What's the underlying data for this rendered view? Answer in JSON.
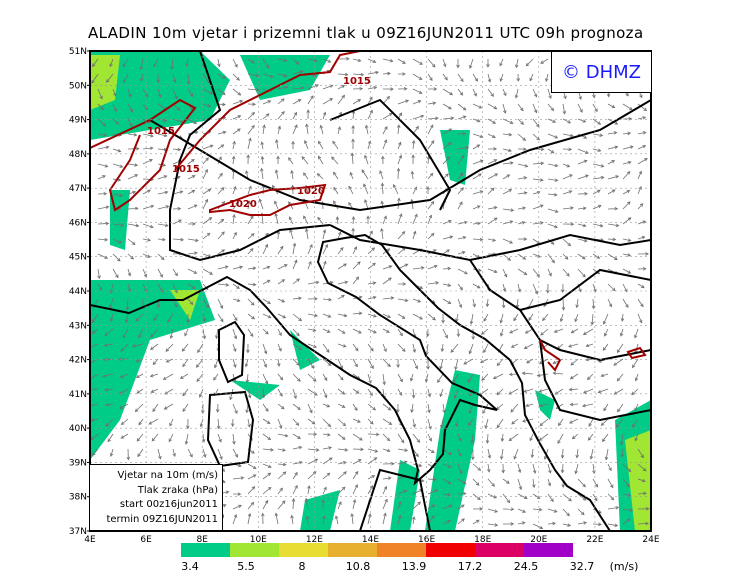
{
  "title": "ALADIN  10m  vjetar  i  prizemni  tlak  u  09Z16JUN2011  UTC  09h  prognoza",
  "logo": "© DHMZ",
  "info": [
    "Vjetar na 10m (m/s)",
    "Tlak zraka (hPa)",
    "start 00z16jun2011",
    "termin 09Z16JUN2011"
  ],
  "lat_ticks": [
    "51N",
    "50N",
    "49N",
    "48N",
    "47N",
    "46N",
    "45N",
    "44N",
    "43N",
    "42N",
    "41N",
    "40N",
    "39N",
    "38N",
    "37N"
  ],
  "lon_ticks": [
    "4E",
    "6E",
    "8E",
    "10E",
    "12E",
    "14E",
    "16E",
    "18E",
    "20E",
    "22E",
    "24E"
  ],
  "isobar_labels": [
    "1015",
    "1015",
    "1015",
    "1020",
    "1020"
  ],
  "colorbar": {
    "colors": [
      "#00cc88",
      "#a0e632",
      "#e6dc32",
      "#e6af2d",
      "#f08228",
      "#f00000",
      "#dc0064",
      "#a000c8"
    ],
    "labels": [
      "3.4",
      "5.5",
      "8",
      "10.8",
      "13.9",
      "17.2",
      "24.5",
      "32.7"
    ],
    "unit": "(m/s)"
  },
  "colors": {
    "isobar": "#a00000",
    "border": "#000000",
    "arrow": "#707070",
    "logo": "#1a1aff"
  }
}
